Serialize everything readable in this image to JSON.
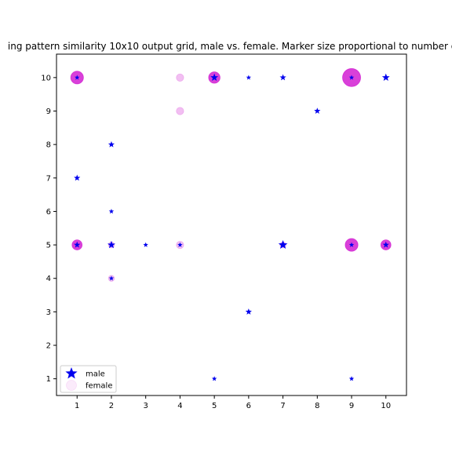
{
  "chart_data": {
    "type": "scatter",
    "title": "ing pattern similarity 10x10 output grid, male vs. female. Marker size proportional to number o",
    "xlabel": "",
    "ylabel": "",
    "xlim": [
      0.4,
      10.6
    ],
    "ylim": [
      0.5,
      10.7
    ],
    "xticks": [
      1,
      2,
      3,
      4,
      5,
      6,
      7,
      8,
      9,
      10
    ],
    "yticks": [
      1,
      2,
      3,
      4,
      5,
      6,
      7,
      8,
      9,
      10
    ],
    "grid": false,
    "legend_position": "lower-left",
    "series": [
      {
        "name": "female",
        "marker": "circle",
        "color": "#cc00cc",
        "points": [
          {
            "x": 1,
            "y": 10,
            "size": 7
          },
          {
            "x": 4,
            "y": 10,
            "size": 3
          },
          {
            "x": 5,
            "y": 10,
            "size": 6
          },
          {
            "x": 9,
            "y": 10,
            "size": 11
          },
          {
            "x": 4,
            "y": 9,
            "size": 3
          },
          {
            "x": 1,
            "y": 5,
            "size": 5
          },
          {
            "x": 2,
            "y": 5,
            "size": 2
          },
          {
            "x": 4,
            "y": 5,
            "size": 3
          },
          {
            "x": 7,
            "y": 5,
            "size": 2
          },
          {
            "x": 9,
            "y": 5,
            "size": 7
          },
          {
            "x": 10,
            "y": 5,
            "size": 5
          },
          {
            "x": 2,
            "y": 4,
            "size": 2
          }
        ]
      },
      {
        "name": "male",
        "marker": "star",
        "color": "#0000ee",
        "points": [
          {
            "x": 1,
            "y": 10,
            "size": 2
          },
          {
            "x": 5,
            "y": 10,
            "size": 4
          },
          {
            "x": 6,
            "y": 10,
            "size": 2
          },
          {
            "x": 7,
            "y": 10,
            "size": 3
          },
          {
            "x": 9,
            "y": 10,
            "size": 2
          },
          {
            "x": 10,
            "y": 10,
            "size": 4
          },
          {
            "x": 8,
            "y": 9,
            "size": 3
          },
          {
            "x": 2,
            "y": 8,
            "size": 3
          },
          {
            "x": 1,
            "y": 7,
            "size": 3
          },
          {
            "x": 2,
            "y": 6,
            "size": 2
          },
          {
            "x": 1,
            "y": 5,
            "size": 3
          },
          {
            "x": 2,
            "y": 5,
            "size": 4
          },
          {
            "x": 3,
            "y": 5,
            "size": 2
          },
          {
            "x": 4,
            "y": 5,
            "size": 2
          },
          {
            "x": 7,
            "y": 5,
            "size": 5
          },
          {
            "x": 9,
            "y": 5,
            "size": 2
          },
          {
            "x": 10,
            "y": 5,
            "size": 3
          },
          {
            "x": 2,
            "y": 4,
            "size": 2
          },
          {
            "x": 6,
            "y": 3,
            "size": 3
          },
          {
            "x": 5,
            "y": 1,
            "size": 2
          },
          {
            "x": 9,
            "y": 1,
            "size": 2
          }
        ]
      }
    ],
    "legend": [
      {
        "label": "male",
        "marker": "star",
        "color": "#0000ee"
      },
      {
        "label": "female",
        "marker": "circle",
        "color": "#cc00cc"
      }
    ]
  }
}
